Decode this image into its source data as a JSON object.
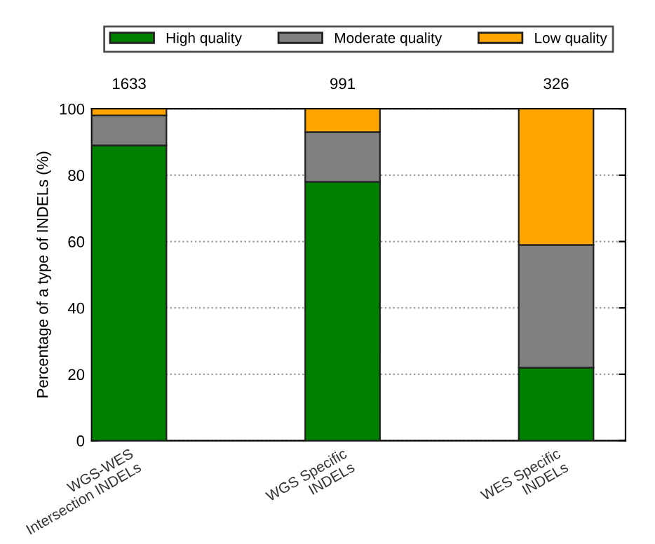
{
  "chart_data": {
    "type": "bar",
    "stacked": true,
    "categories": [
      "WGS-WES\nIntersection INDELs",
      "WGS Specific\nINDELs",
      "WES Specific\nINDELs"
    ],
    "series": [
      {
        "name": "High quality",
        "color": "#008000",
        "values": [
          89,
          78,
          22
        ]
      },
      {
        "name": "Moderate quality",
        "color": "#808080",
        "values": [
          9,
          15,
          37
        ]
      },
      {
        "name": "Low quality",
        "color": "#ffa500",
        "values": [
          2,
          7,
          41
        ]
      }
    ],
    "ylabel": "Percentage of a type of INDELs (%)",
    "ylim": [
      0,
      100
    ],
    "yticks": [
      0,
      20,
      40,
      60,
      80,
      100
    ],
    "annotations": [
      "1633",
      "991",
      "326"
    ],
    "grid": "y",
    "legend": "top"
  }
}
